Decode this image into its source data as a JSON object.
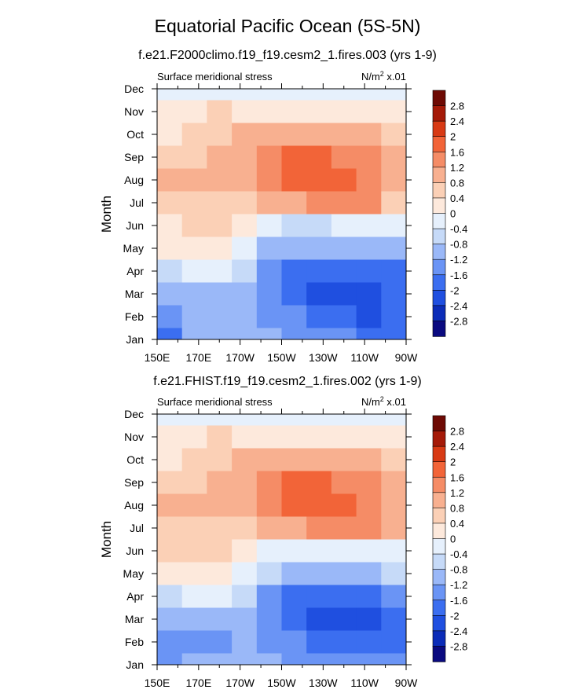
{
  "title": "Equatorial Pacific Ocean (5S-5N)",
  "colors": [
    "#0a0a80",
    "#0b2cb8",
    "#1f4fe0",
    "#3b6ef0",
    "#6a94f5",
    "#9ab8f8",
    "#c6daf8",
    "#e6f0fc",
    "#fde9dc",
    "#fbd0b6",
    "#f8b090",
    "#f58c66",
    "#f26438",
    "#d83a14",
    "#a51a08",
    "#6e0a04"
  ],
  "colorbar_labels": [
    "2.8",
    "2.4",
    "2",
    "1.6",
    "1.2",
    "0.8",
    "0.4",
    "0",
    "-0.4",
    "-0.8",
    "-1.2",
    "-1.6",
    "-2",
    "-2.4",
    "-2.8"
  ],
  "chart_data": [
    {
      "type": "heatmap",
      "title": "f.e21.F2000climo.f19_f19.cesm2_1.fires.003 (yrs 1-9)",
      "left_label": "Surface meridional stress",
      "right_label_base": "N/m",
      "right_label_sup": "2",
      "right_label_suffix": " x.01",
      "ylabel": "Month",
      "x_ticks": [
        "150E",
        "170E",
        "170W",
        "150W",
        "130W",
        "110W",
        "90W"
      ],
      "y_ticks": [
        "Jan",
        "Feb",
        "Mar",
        "Apr",
        "May",
        "Jun",
        "Jul",
        "Aug",
        "Sep",
        "Oct",
        "Nov",
        "Dec"
      ],
      "values": [
        [
          -1.8,
          -1.0,
          -0.9,
          -1.0,
          -1.2,
          -1.4,
          -1.5,
          -1.6,
          -1.7,
          -1.8
        ],
        [
          -1.3,
          -1.1,
          -1.0,
          -1.1,
          -1.4,
          -1.6,
          -1.9,
          -2.0,
          -2.1,
          -2.0
        ],
        [
          -1.2,
          -0.9,
          -0.9,
          -1.1,
          -1.5,
          -1.9,
          -2.1,
          -2.2,
          -2.3,
          -2.0
        ],
        [
          -0.6,
          -0.4,
          -0.4,
          -0.8,
          -1.3,
          -1.7,
          -2.0,
          -2.0,
          -1.9,
          -1.7
        ],
        [
          0.3,
          0.3,
          0.2,
          -0.3,
          -0.9,
          -1.2,
          -1.2,
          -1.1,
          -1.0,
          -0.9
        ],
        [
          0.3,
          0.4,
          0.4,
          0.1,
          -0.3,
          -0.5,
          -0.5,
          -0.4,
          -0.3,
          -0.4
        ],
        [
          0.7,
          0.6,
          0.6,
          0.7,
          0.9,
          1.1,
          1.2,
          1.3,
          1.2,
          0.7
        ],
        [
          0.8,
          0.8,
          0.8,
          1.0,
          1.3,
          1.6,
          1.7,
          1.6,
          1.4,
          0.9
        ],
        [
          0.4,
          0.7,
          0.8,
          1.0,
          1.4,
          1.6,
          1.7,
          1.4,
          1.2,
          0.8
        ],
        [
          0.3,
          0.5,
          0.6,
          0.8,
          1.0,
          1.0,
          0.9,
          0.8,
          0.8,
          0.6
        ],
        [
          0.2,
          0.3,
          0.4,
          0.3,
          0.3,
          0.3,
          0.2,
          0.2,
          0.1,
          0.0
        ],
        [
          -0.2,
          -0.1,
          -0.1,
          -0.2,
          -0.2,
          -0.2,
          -0.1,
          -0.1,
          -0.1,
          -0.2
        ]
      ]
    },
    {
      "type": "heatmap",
      "title": "f.e21.FHIST.f19_f19.cesm2_1.fires.002 (yrs 1-9)",
      "left_label": "Surface meridional stress",
      "right_label_base": "N/m",
      "right_label_sup": "2",
      "right_label_suffix": " x.01",
      "ylabel": "Month",
      "x_ticks": [
        "150E",
        "170E",
        "170W",
        "150W",
        "130W",
        "110W",
        "90W"
      ],
      "y_ticks": [
        "Jan",
        "Feb",
        "Mar",
        "Apr",
        "May",
        "Jun",
        "Jul",
        "Aug",
        "Sep",
        "Oct",
        "Nov",
        "Dec"
      ],
      "values": [
        [
          -1.4,
          -1.0,
          -0.9,
          -1.0,
          -1.2,
          -1.3,
          -1.4,
          -1.5,
          -1.6,
          -1.6
        ],
        [
          -1.3,
          -1.5,
          -1.4,
          -1.1,
          -1.3,
          -1.6,
          -1.7,
          -1.9,
          -1.9,
          -1.8
        ],
        [
          -1.2,
          -1.0,
          -0.9,
          -1.1,
          -1.5,
          -1.9,
          -2.1,
          -2.2,
          -2.3,
          -2.0
        ],
        [
          -0.5,
          -0.4,
          -0.4,
          -0.8,
          -1.3,
          -1.7,
          -1.9,
          -1.9,
          -1.8,
          -1.6
        ],
        [
          0.3,
          0.3,
          0.2,
          -0.3,
          -0.8,
          -1.1,
          -1.1,
          -1.0,
          -0.9,
          -0.8
        ],
        [
          0.4,
          0.5,
          0.5,
          0.2,
          -0.2,
          -0.4,
          -0.4,
          -0.3,
          -0.2,
          -0.3
        ],
        [
          0.6,
          0.6,
          0.6,
          0.7,
          0.9,
          1.1,
          1.2,
          1.3,
          1.3,
          0.8
        ],
        [
          0.8,
          0.8,
          0.8,
          1.1,
          1.4,
          1.7,
          1.7,
          1.6,
          1.4,
          0.9
        ],
        [
          0.5,
          0.7,
          0.8,
          1.1,
          1.5,
          1.7,
          1.7,
          1.5,
          1.2,
          0.8
        ],
        [
          0.3,
          0.5,
          0.6,
          0.9,
          1.1,
          1.1,
          1.0,
          0.9,
          0.8,
          0.6
        ],
        [
          0.2,
          0.3,
          0.4,
          0.3,
          0.3,
          0.3,
          0.2,
          0.2,
          0.1,
          0.0
        ],
        [
          -0.2,
          -0.1,
          -0.1,
          -0.2,
          -0.2,
          -0.2,
          -0.1,
          -0.1,
          -0.1,
          -0.2
        ]
      ]
    }
  ]
}
